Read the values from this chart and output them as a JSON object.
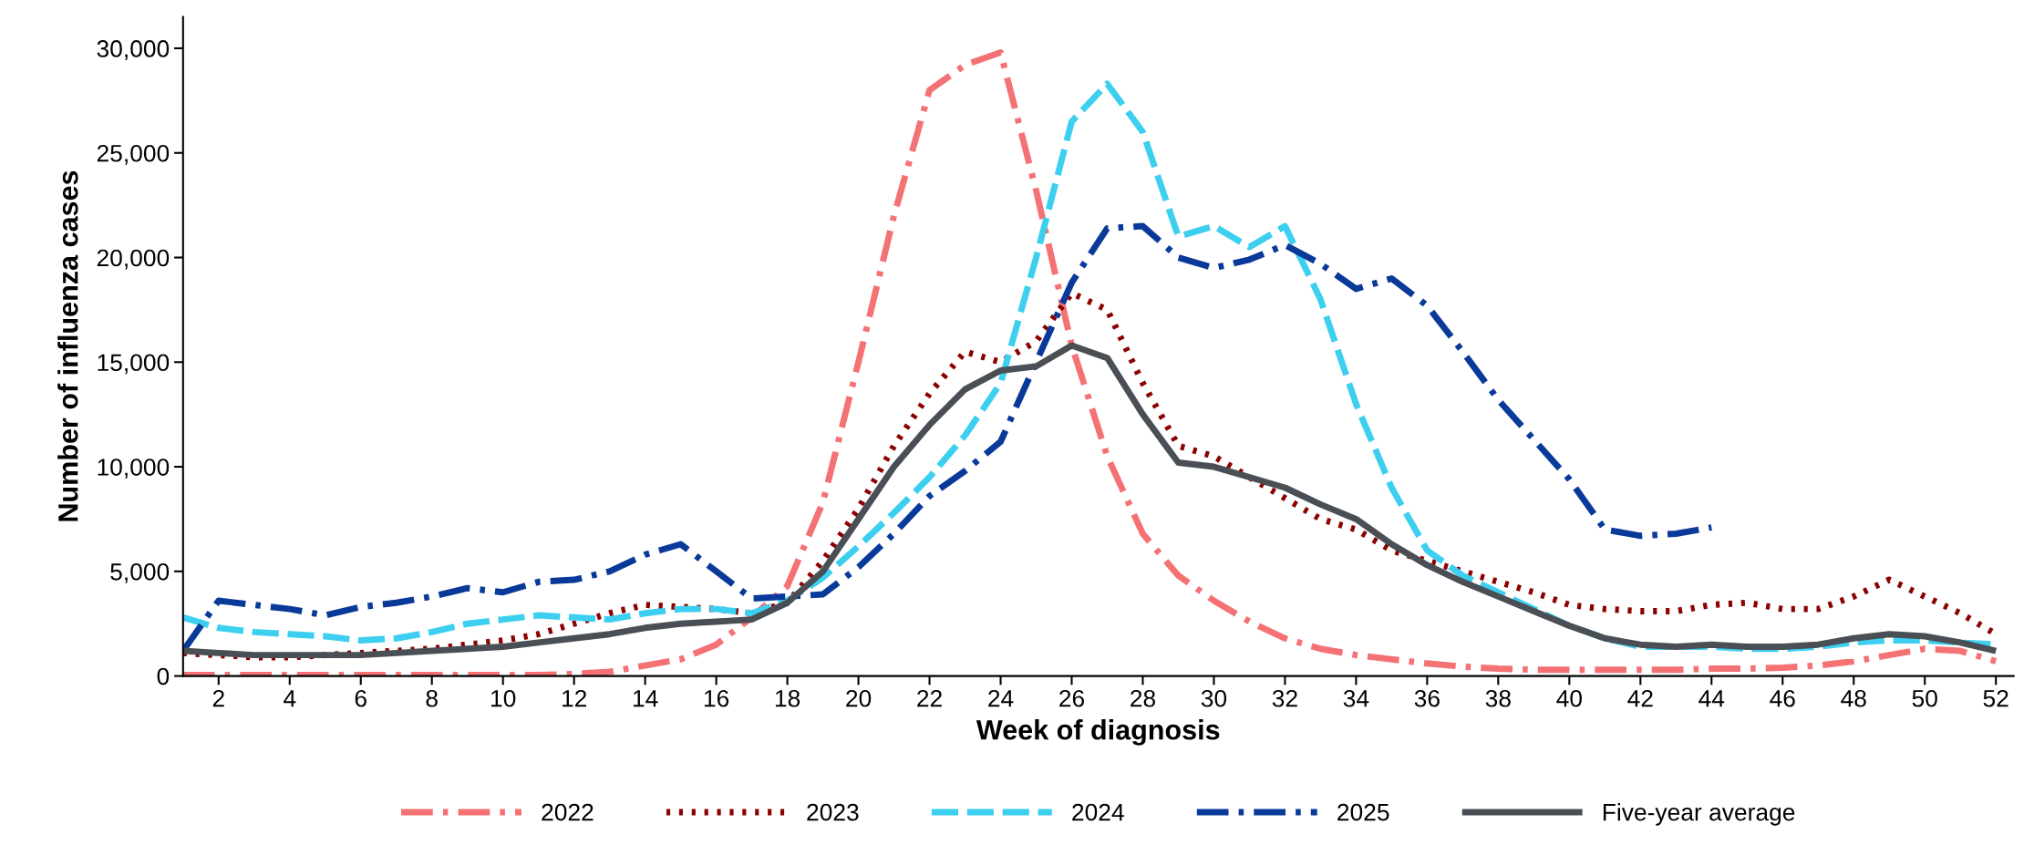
{
  "chart_data": {
    "type": "line",
    "xlabel": "Week of diagnosis",
    "ylabel": "Number of influenza cases",
    "x": [
      1,
      2,
      3,
      4,
      5,
      6,
      7,
      8,
      9,
      10,
      11,
      12,
      13,
      14,
      15,
      16,
      17,
      18,
      19,
      20,
      21,
      22,
      23,
      24,
      25,
      26,
      27,
      28,
      29,
      30,
      31,
      32,
      33,
      34,
      35,
      36,
      37,
      38,
      39,
      40,
      41,
      42,
      43,
      44,
      45,
      46,
      47,
      48,
      49,
      50,
      51,
      52
    ],
    "xlim": [
      1,
      52.5
    ],
    "xticks": [
      2,
      4,
      6,
      8,
      10,
      12,
      14,
      16,
      18,
      20,
      22,
      24,
      26,
      28,
      30,
      32,
      34,
      36,
      38,
      40,
      42,
      44,
      46,
      48,
      50,
      52
    ],
    "ylim": [
      0,
      31500
    ],
    "yticks": [
      {
        "value": 0,
        "label": "0"
      },
      {
        "value": 5000,
        "label": "5,000"
      },
      {
        "value": 10000,
        "label": "10,000"
      },
      {
        "value": 15000,
        "label": "15,000"
      },
      {
        "value": 20000,
        "label": "20,000"
      },
      {
        "value": 25000,
        "label": "25,000"
      },
      {
        "value": 30000,
        "label": "30,000"
      }
    ],
    "grid": false,
    "legend": "bottom",
    "marker": "none",
    "series": [
      {
        "name": "2022",
        "color": "#f47174",
        "line_style": "dashdot",
        "values": [
          50,
          50,
          50,
          50,
          50,
          50,
          50,
          50,
          50,
          50,
          50,
          100,
          200,
          500,
          800,
          1500,
          2800,
          4300,
          8300,
          15000,
          22000,
          28000,
          29200,
          29800,
          23200,
          15800,
          10500,
          6800,
          4800,
          3600,
          2600,
          1800,
          1300,
          1000,
          800,
          600,
          450,
          350,
          300,
          300,
          300,
          300,
          300,
          350,
          350,
          400,
          500,
          700,
          1000,
          1300,
          1200,
          700
        ]
      },
      {
        "name": "2023",
        "color": "#8b0000",
        "line_style": "dotted",
        "values": [
          1100,
          1000,
          900,
          900,
          1000,
          1100,
          1200,
          1300,
          1500,
          1700,
          2000,
          2500,
          3000,
          3400,
          3300,
          3200,
          3000,
          3500,
          5500,
          8000,
          11000,
          13500,
          15500,
          15000,
          16000,
          18300,
          17500,
          14000,
          11000,
          10500,
          9500,
          8500,
          7500,
          7000,
          6000,
          5500,
          5000,
          4500,
          4000,
          3400,
          3200,
          3100,
          3100,
          3400,
          3500,
          3200,
          3200,
          3800,
          4600,
          3800,
          3000,
          2000
        ]
      },
      {
        "name": "2024",
        "color": "#3ccfef",
        "line_style": "dashed",
        "values": [
          2800,
          2300,
          2100,
          2000,
          1900,
          1700,
          1800,
          2100,
          2500,
          2700,
          2900,
          2800,
          2700,
          3000,
          3200,
          3200,
          3000,
          3600,
          4700,
          6200,
          7800,
          9500,
          11500,
          14000,
          20000,
          26500,
          28300,
          26000,
          21000,
          21500,
          20500,
          21500,
          18000,
          13000,
          9000,
          6000,
          4800,
          4000,
          3200,
          2400,
          1800,
          1400,
          1400,
          1400,
          1300,
          1300,
          1400,
          1600,
          1700,
          1700,
          1600,
          1500
        ]
      },
      {
        "name": "2025",
        "color": "#0a3a99",
        "line_style": "dashdot",
        "values": [
          1200,
          3600,
          3400,
          3200,
          2900,
          3300,
          3500,
          3800,
          4200,
          4000,
          4500,
          4600,
          5000,
          5800,
          6300,
          5000,
          3700,
          3800,
          3900,
          5200,
          6800,
          8600,
          9800,
          11200,
          15000,
          18800,
          21400,
          21500,
          20000,
          19500,
          19900,
          20600,
          19700,
          18500,
          19000,
          17700,
          15500,
          13200,
          11300,
          9400,
          7000,
          6700,
          6800,
          7100,
          null,
          null,
          null,
          null,
          null,
          null,
          null,
          null
        ]
      },
      {
        "name": "Five-year average",
        "color": "#4a4f55",
        "line_style": "solid",
        "values": [
          1200,
          1100,
          1000,
          1000,
          1000,
          1000,
          1100,
          1200,
          1300,
          1400,
          1600,
          1800,
          2000,
          2300,
          2500,
          2600,
          2700,
          3500,
          5000,
          7500,
          10000,
          12000,
          13700,
          14600,
          14800,
          15800,
          15200,
          12500,
          10200,
          10000,
          9500,
          9000,
          8200,
          7500,
          6300,
          5300,
          4500,
          3800,
          3100,
          2400,
          1800,
          1500,
          1400,
          1500,
          1400,
          1400,
          1500,
          1800,
          2000,
          1900,
          1600,
          1200
        ]
      }
    ]
  }
}
